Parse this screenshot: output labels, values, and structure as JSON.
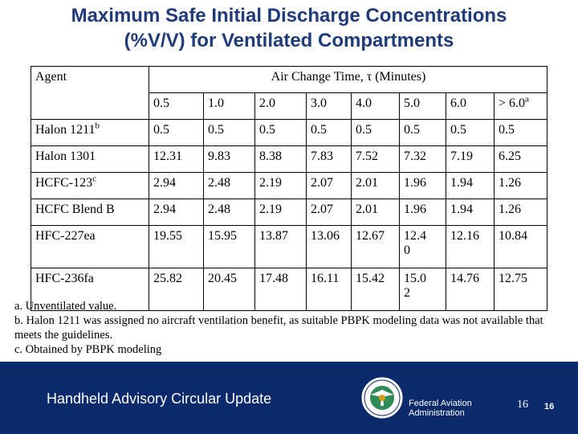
{
  "title": {
    "line1": "Maximum Safe Initial Discharge Concentrations",
    "line2": "(%V/V) for Ventilated Compartments"
  },
  "table": {
    "agent_header": "Agent",
    "group_header": "Air Change Time, τ  (Minutes)",
    "columns": [
      "0.5",
      "1.0",
      "2.0",
      "3.0",
      "4.0",
      "5.0",
      "6.0",
      "> 6.0"
    ],
    "last_column_sup": "a",
    "rows": [
      {
        "agent": "Halon 1211",
        "sup": "b",
        "values": [
          "0.5",
          "0.5",
          "0.5",
          "0.5",
          "0.5",
          "0.5",
          "0.5",
          "0.5"
        ]
      },
      {
        "agent": "Halon 1301",
        "sup": "",
        "values": [
          "12.31",
          "9.83",
          "8.38",
          "7.83",
          "7.52",
          "7.32",
          "7.19",
          "6.25"
        ]
      },
      {
        "agent": "HCFC-123",
        "sup": "c",
        "values": [
          "2.94",
          "2.48",
          "2.19",
          "2.07",
          "2.01",
          "1.96",
          "1.94",
          "1.26"
        ]
      },
      {
        "agent": "HCFC Blend B",
        "sup": "",
        "values": [
          "2.94",
          "2.48",
          "2.19",
          "2.07",
          "2.01",
          "1.96",
          "1.94",
          "1.26"
        ]
      },
      {
        "agent": "HFC-227ea",
        "sup": "",
        "values": [
          "19.55",
          "15.95",
          "13.87",
          "13.06",
          "12.67",
          "12.4 0",
          "12.16",
          "10.84"
        ]
      },
      {
        "agent": "HFC-236fa",
        "sup": "",
        "values": [
          "25.82",
          "20.45",
          "17.48",
          "16.11",
          "15.42",
          "15.0 2",
          "14.76",
          "12.75"
        ]
      }
    ]
  },
  "footnotes": {
    "a": "a. Unventilated value.",
    "b": "b. Halon 1211 was assigned no aircraft ventilation benefit, as suitable PBPK modeling data was not available that meets the guidelines.",
    "c": "c. Obtained by PBPK modeling"
  },
  "footer": {
    "title": "Handheld Advisory Circular Update",
    "agency_line1": "Federal Aviation",
    "agency_line2": "Administration",
    "slide_number": "16",
    "slide_number_small": "16",
    "seal_icon": "faa-seal-icon",
    "band_color": "#0b2a6b",
    "title_color": "#1f3b7a"
  }
}
